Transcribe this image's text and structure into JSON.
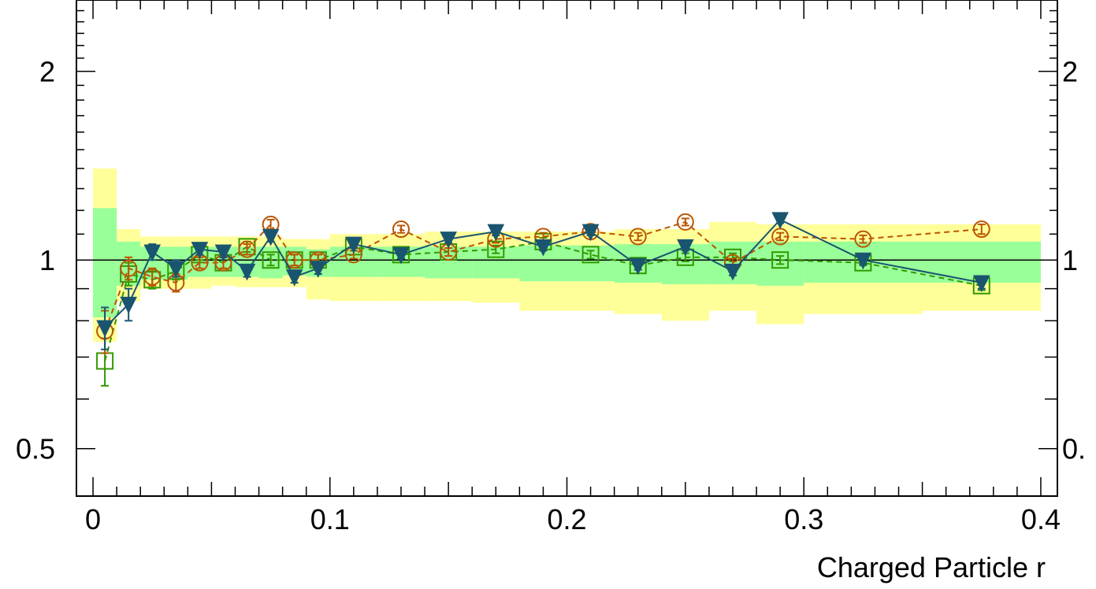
{
  "chart_data": {
    "type": "scatter",
    "title": "",
    "xlabel": "Charged Particle r",
    "ylabel": "",
    "yscale": "log",
    "xlim": [
      -0.007,
      0.407
    ],
    "ylim": [
      0.42,
      2.6
    ],
    "x_ticks": [
      0,
      0.1,
      0.2,
      0.3,
      0.4
    ],
    "x_tick_labels": [
      "0",
      "0.1",
      "0.2",
      "0.3",
      "0.4"
    ],
    "y_ticks": [
      0.5,
      1,
      2
    ],
    "y_tick_labels": [
      "0.5",
      "1",
      "2"
    ],
    "right_y_tick_labels": [
      "0.",
      "1",
      "2"
    ],
    "reference_line": 1,
    "grid": false,
    "bin_edges": [
      0,
      0.01,
      0.02,
      0.03,
      0.04,
      0.05,
      0.06,
      0.07,
      0.08,
      0.09,
      0.1,
      0.12,
      0.14,
      0.16,
      0.18,
      0.2,
      0.22,
      0.24,
      0.26,
      0.28,
      0.3,
      0.35,
      0.4
    ],
    "bands": [
      {
        "color": "#ffff99",
        "low": [
          0.74,
          0.86,
          0.9,
          0.9,
          0.9,
          0.91,
          0.905,
          0.905,
          0.905,
          0.865,
          0.86,
          0.86,
          0.86,
          0.855,
          0.83,
          0.83,
          0.82,
          0.8,
          0.83,
          0.79,
          0.82,
          0.83
        ],
        "high": [
          1.4,
          1.12,
          1.09,
          1.09,
          1.09,
          1.09,
          1.09,
          1.09,
          1.08,
          1.08,
          1.1,
          1.1,
          1.11,
          1.11,
          1.11,
          1.11,
          1.12,
          1.12,
          1.15,
          1.14,
          1.14,
          1.14
        ]
      },
      {
        "color": "#99ff99",
        "low": [
          0.81,
          0.91,
          0.93,
          0.93,
          0.94,
          0.94,
          0.94,
          0.935,
          0.945,
          0.94,
          0.94,
          0.94,
          0.935,
          0.935,
          0.925,
          0.925,
          0.92,
          0.915,
          0.915,
          0.91,
          0.92,
          0.92
        ],
        "high": [
          1.21,
          1.07,
          1.05,
          1.05,
          1.05,
          1.05,
          1.05,
          1.05,
          1.05,
          1.04,
          1.05,
          1.05,
          1.05,
          1.05,
          1.055,
          1.055,
          1.06,
          1.06,
          1.07,
          1.07,
          1.07,
          1.07
        ]
      }
    ],
    "x": [
      0.005,
      0.015,
      0.025,
      0.035,
      0.045,
      0.055,
      0.065,
      0.075,
      0.085,
      0.095,
      0.11,
      0.13,
      0.15,
      0.17,
      0.19,
      0.21,
      0.23,
      0.25,
      0.27,
      0.29,
      0.325,
      0.375
    ],
    "series": [
      {
        "marker": "open-square",
        "line": "dashed",
        "color": "#339900",
        "values": [
          0.69,
          0.95,
          0.93,
          0.96,
          1.02,
          0.99,
          1.05,
          1.0,
          1.0,
          1.0,
          1.05,
          1.02,
          1.03,
          1.04,
          1.07,
          1.02,
          0.98,
          1.01,
          1.01,
          1.0,
          0.99,
          0.91
        ],
        "errors": [
          0.06,
          0.04,
          0.03,
          0.03,
          0.02,
          0.02,
          0.02,
          0.02,
          0.02,
          0.02,
          0.015,
          0.015,
          0.015,
          0.015,
          0.015,
          0.015,
          0.015,
          0.015,
          0.015,
          0.015,
          0.01,
          0.015
        ]
      },
      {
        "marker": "open-circle",
        "line": "dashed",
        "color": "#bb5500",
        "values": [
          0.77,
          0.97,
          0.94,
          0.92,
          0.99,
          0.99,
          1.04,
          1.14,
          1.0,
          1.0,
          1.02,
          1.12,
          1.03,
          1.08,
          1.09,
          1.11,
          1.09,
          1.15,
          0.99,
          1.09,
          1.08,
          1.12
        ],
        "errors": [
          0.06,
          0.04,
          0.03,
          0.03,
          0.02,
          0.02,
          0.02,
          0.02,
          0.02,
          0.02,
          0.015,
          0.015,
          0.015,
          0.015,
          0.015,
          0.015,
          0.015,
          0.015,
          0.015,
          0.015,
          0.015,
          0.02
        ]
      },
      {
        "marker": "filled-triangle-down",
        "line": "solid",
        "color": "#1a5570",
        "values": [
          0.78,
          0.85,
          1.03,
          0.97,
          1.04,
          1.03,
          0.96,
          1.09,
          0.94,
          0.97,
          1.06,
          1.02,
          1.08,
          1.11,
          1.05,
          1.11,
          0.98,
          1.05,
          0.96,
          1.16,
          1.0,
          0.92
        ],
        "errors": [
          0.06,
          0.05,
          0.03,
          0.03,
          0.02,
          0.02,
          0.02,
          0.02,
          0.02,
          0.02,
          0.015,
          0.015,
          0.015,
          0.015,
          0.015,
          0.015,
          0.015,
          0.015,
          0.015,
          0.015,
          0.015,
          0.02
        ]
      }
    ]
  }
}
